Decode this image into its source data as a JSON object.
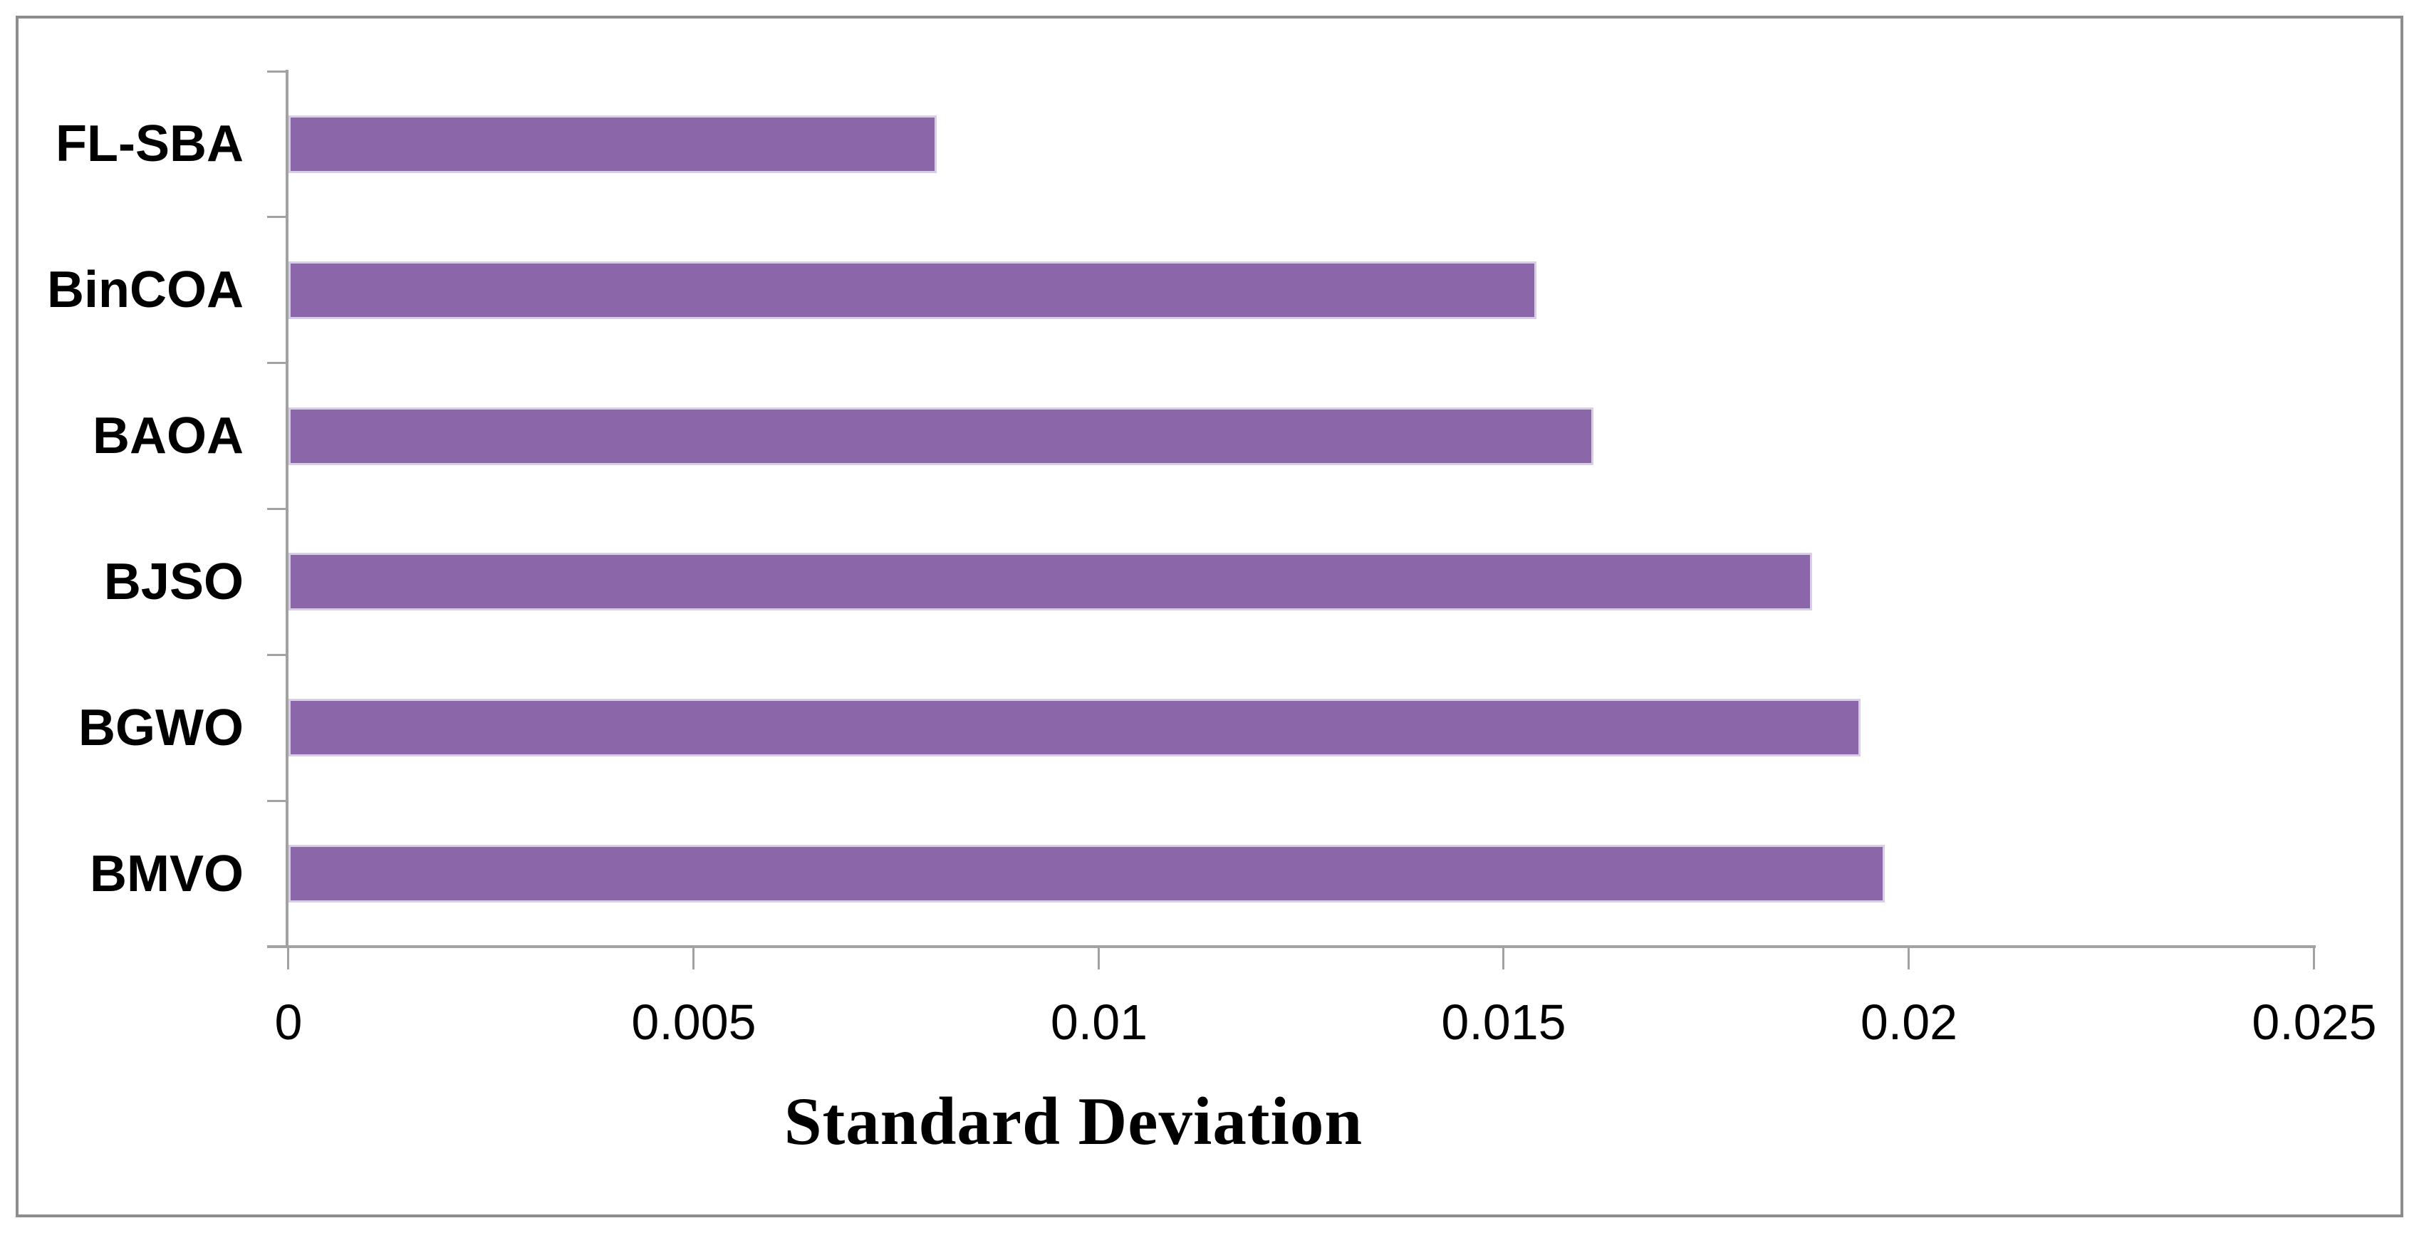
{
  "figure": {
    "background_color": "#ffffff",
    "frame_border_color": "#8d8d8d"
  },
  "chart_data": {
    "type": "bar",
    "orientation": "horizontal",
    "title": "",
    "xlabel": "Standard Deviation",
    "ylabel": "",
    "categories": [
      "FL-SBA",
      "BinCOA",
      "BAOA",
      "BJSO",
      "BGWO",
      "BMVO"
    ],
    "values": [
      0.008,
      0.0154,
      0.0161,
      0.0188,
      0.0194,
      0.0197
    ],
    "xlim": [
      0,
      0.025
    ],
    "x_ticks": [
      0,
      0.005,
      0.01,
      0.015,
      0.02,
      0.025
    ],
    "x_tick_labels": [
      "0",
      "0.005",
      "0.01",
      "0.015",
      "0.02",
      "0.025"
    ],
    "grid": false,
    "legend": false,
    "bar_color": "#8b67a9",
    "bar_border_color": "#d8cee5",
    "axis_color": "#a2a2a2",
    "text_color": "#000000"
  }
}
